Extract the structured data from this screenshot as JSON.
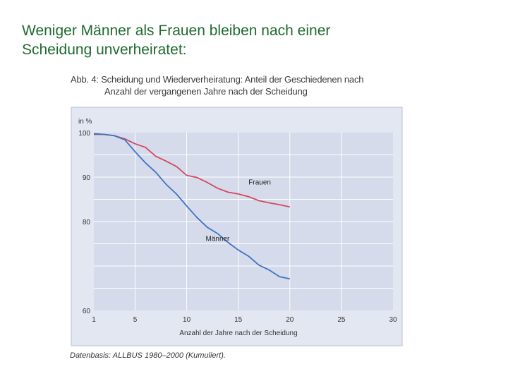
{
  "slide": {
    "title_line1": "Weniger Männer als Frauen bleiben nach einer",
    "title_line2": "Scheidung unverheiratet:"
  },
  "figure": {
    "caption_line1": "Abb. 4:  Scheidung und Wiederverheiratung: Anteil der Geschiedenen nach",
    "caption_line2": "Anzahl der vergangenen Jahre nach der Scheidung",
    "source": "Datenbasis: ALLBUS 1980–2000 (Kumuliert)."
  },
  "colors": {
    "plot_background": "#d5dbeb",
    "frame_background": "#e3e7f1",
    "frauen": "#d5475f",
    "maenner": "#3f74c0",
    "grid": "#ffffff"
  },
  "chart_data": {
    "type": "line",
    "title": "",
    "xlabel": "Anzahl der Jahre nach der Scheidung",
    "ylabel": "in %",
    "x_ticks": [
      1,
      5,
      10,
      15,
      20,
      25,
      30
    ],
    "y_ticks": [
      60,
      80,
      90,
      100
    ],
    "xlim": [
      1,
      30
    ],
    "ylim": [
      60,
      100
    ],
    "grid": true,
    "series": [
      {
        "name": "Frauen",
        "x": [
          1,
          2,
          3,
          4,
          5,
          6,
          7,
          8,
          9,
          10,
          11,
          12,
          13,
          14,
          15,
          16,
          17,
          18,
          19,
          20
        ],
        "y": [
          99.6,
          99.6,
          99.3,
          98.6,
          97.5,
          96.7,
          94.7,
          93.6,
          92.4,
          90.4,
          89.9,
          88.8,
          87.5,
          86.6,
          86.2,
          85.6,
          84.7,
          84.2,
          83.8,
          83.3
        ]
      },
      {
        "name": "Männer",
        "x": [
          1,
          2,
          3,
          4,
          5,
          6,
          7,
          8,
          9,
          10,
          11,
          12,
          13,
          14,
          15,
          16,
          17,
          18,
          19,
          20
        ],
        "y": [
          99.8,
          99.6,
          99.3,
          98.4,
          95.7,
          93.2,
          91.1,
          88.4,
          86.2,
          83.5,
          80.9,
          78.7,
          77.3,
          75.3,
          73.6,
          72.2,
          70.2,
          69.1,
          67.6,
          67.1
        ]
      }
    ]
  }
}
